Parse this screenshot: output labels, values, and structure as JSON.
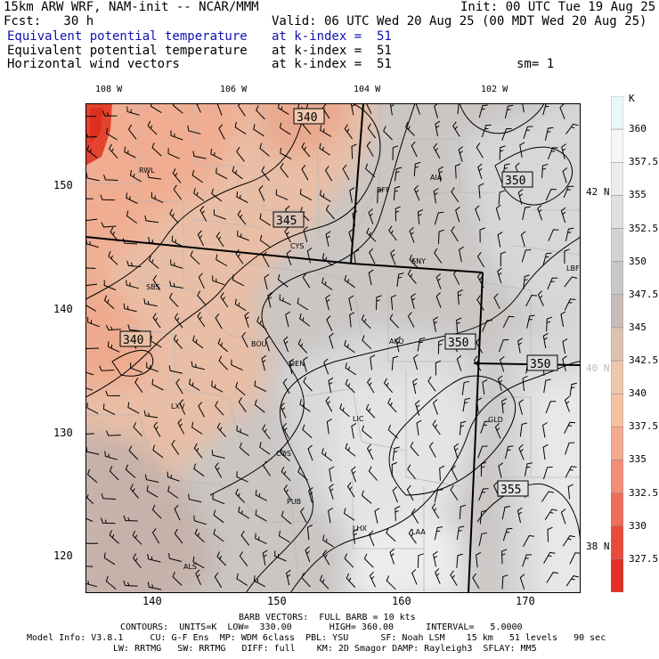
{
  "header": {
    "model": "15km ARW WRF, NAM-init -- NCAR/MMM",
    "init": "Init: 00 UTC Tue 19 Aug 25",
    "fcst": "Fcst:   30 h",
    "valid": "Valid: 06 UTC Wed 20 Aug 25 (00 MDT Wed 20 Aug 25)",
    "line1_field": "Equivalent potential temperature",
    "line1_level": "at k-index =  51",
    "line2_field": "Equivalent potential temperature",
    "line2_level": "at k-index =  51",
    "line3_field": "Horizontal wind vectors",
    "line3_level": "at k-index =  51",
    "smoothing": "sm= 1"
  },
  "colors": {
    "blue_text": "#1010b0",
    "state_border": "#000000",
    "county_lines": "#b8b8b8"
  },
  "axes": {
    "top_ticks": [
      {
        "label": "108 W"
      },
      {
        "label": "106 W"
      },
      {
        "label": "104 W"
      },
      {
        "label": "102 W"
      }
    ],
    "bottom_ticks": [
      "140",
      "150",
      "160",
      "170"
    ],
    "left_ticks": [
      "150",
      "140",
      "130",
      "120"
    ],
    "lat_labels": [
      "42 N",
      "40 N",
      "38 N"
    ]
  },
  "stations": [
    "RWL",
    "BFF",
    "AIA",
    "CYS",
    "SNY",
    "LBF",
    "SBS",
    "BOU",
    "AKO",
    "DEN",
    "LXV",
    "LIC",
    "GLD",
    "COS",
    "PUB",
    "LHX",
    "LAA",
    "ALS"
  ],
  "contour_labels": [
    "340",
    "345",
    "340",
    "350",
    "350",
    "350",
    "355"
  ],
  "colorbar": {
    "unit": "K",
    "labels": [
      "360",
      "357.5",
      "355",
      "352.5",
      "350",
      "347.5",
      "345",
      "342.5",
      "340",
      "337.5",
      "335",
      "332.5",
      "330",
      "327.5"
    ],
    "colors": [
      "#e8f8f8",
      "#f6f6f6",
      "#ececec",
      "#e0e0e0",
      "#d3d3d3",
      "#c8c8c8",
      "#c8bcb6",
      "#dcc2b2",
      "#eec6ac",
      "#f6c0a2",
      "#f4aa90",
      "#f28e76",
      "#ee6e5a",
      "#ea4a3c",
      "#e42e26"
    ]
  },
  "footer": {
    "barb": "BARB VECTORS:  FULL BARB = 10 kts",
    "contours": "CONTOURS:  UNITS=K  LOW=  330.00       HIGH= 360.00      INTERVAL=   5.0000",
    "model_info_1": "Model Info: V3.8.1     CU: G-F Ens  MP: WDM 6class  PBL: YSU      SF: Noah LSM    15 km   51 levels   90 sec",
    "model_info_2": "LW: RRTMG   SW: RRTMG   DIFF: full    KM: 2D Smagor DAMP: Rayleigh3  SFLAY: MM5"
  }
}
